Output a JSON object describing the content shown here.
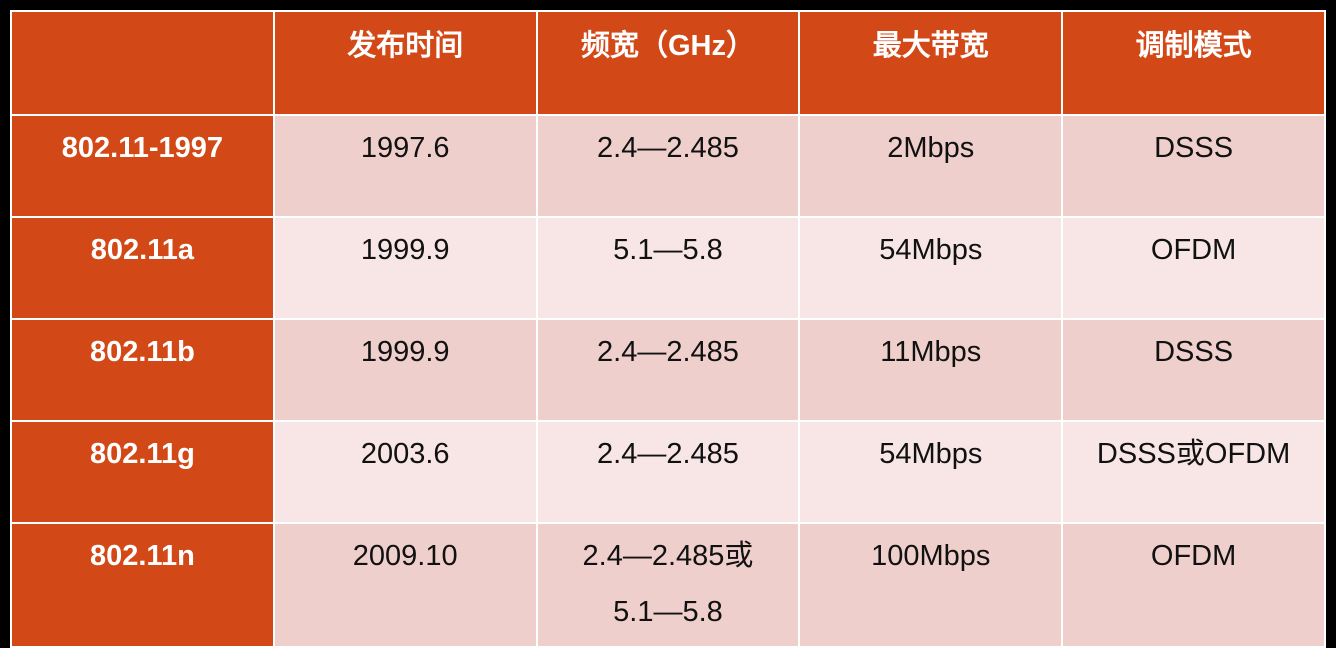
{
  "table": {
    "headers": [
      "",
      "发布时间",
      "频宽（GHz）",
      "最大带宽",
      "调制模式"
    ],
    "rows": [
      {
        "standard": "802.11-1997",
        "release": "1997.6",
        "band": [
          "2.4—2.485"
        ],
        "bandwidth": "2Mbps",
        "modulation": "DSSS"
      },
      {
        "standard": "802.11a",
        "release": "1999.9",
        "band": [
          "5.1—5.8"
        ],
        "bandwidth": "54Mbps",
        "modulation": "OFDM"
      },
      {
        "standard": "802.11b",
        "release": "1999.9",
        "band": [
          "2.4—2.485"
        ],
        "bandwidth": "11Mbps",
        "modulation": "DSSS"
      },
      {
        "standard": "802.11g",
        "release": "2003.6",
        "band": [
          "2.4—2.485"
        ],
        "bandwidth": "54Mbps",
        "modulation": "DSSS或OFDM"
      },
      {
        "standard": "802.11n",
        "release": "2009.10",
        "band": [
          "2.4—2.485或",
          "5.1—5.8"
        ],
        "bandwidth": "100Mbps",
        "modulation": "OFDM"
      }
    ]
  },
  "colors": {
    "header_bg": "#d34817",
    "row_odd_bg": "#efcfcc",
    "row_even_bg": "#f7e6e5",
    "border": "#ffffff",
    "outer_bg": "#000000"
  }
}
